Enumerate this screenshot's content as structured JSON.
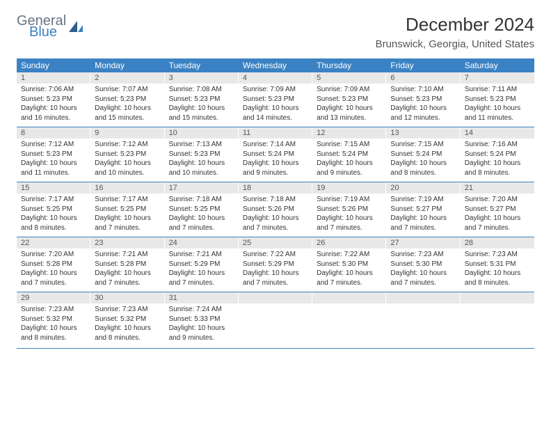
{
  "logo": {
    "text1": "General",
    "text2": "Blue"
  },
  "title": "December 2024",
  "location": "Brunswick, Georgia, United States",
  "weekdays": [
    "Sunday",
    "Monday",
    "Tuesday",
    "Wednesday",
    "Thursday",
    "Friday",
    "Saturday"
  ],
  "colors": {
    "header_bg": "#3b82c4",
    "day_bar_bg": "#e8e8e8",
    "text": "#333333"
  },
  "days": [
    {
      "n": "1",
      "sunrise": "7:06 AM",
      "sunset": "5:23 PM",
      "daylight": "10 hours and 16 minutes."
    },
    {
      "n": "2",
      "sunrise": "7:07 AM",
      "sunset": "5:23 PM",
      "daylight": "10 hours and 15 minutes."
    },
    {
      "n": "3",
      "sunrise": "7:08 AM",
      "sunset": "5:23 PM",
      "daylight": "10 hours and 15 minutes."
    },
    {
      "n": "4",
      "sunrise": "7:09 AM",
      "sunset": "5:23 PM",
      "daylight": "10 hours and 14 minutes."
    },
    {
      "n": "5",
      "sunrise": "7:09 AM",
      "sunset": "5:23 PM",
      "daylight": "10 hours and 13 minutes."
    },
    {
      "n": "6",
      "sunrise": "7:10 AM",
      "sunset": "5:23 PM",
      "daylight": "10 hours and 12 minutes."
    },
    {
      "n": "7",
      "sunrise": "7:11 AM",
      "sunset": "5:23 PM",
      "daylight": "10 hours and 11 minutes."
    },
    {
      "n": "8",
      "sunrise": "7:12 AM",
      "sunset": "5:23 PM",
      "daylight": "10 hours and 11 minutes."
    },
    {
      "n": "9",
      "sunrise": "7:12 AM",
      "sunset": "5:23 PM",
      "daylight": "10 hours and 10 minutes."
    },
    {
      "n": "10",
      "sunrise": "7:13 AM",
      "sunset": "5:23 PM",
      "daylight": "10 hours and 10 minutes."
    },
    {
      "n": "11",
      "sunrise": "7:14 AM",
      "sunset": "5:24 PM",
      "daylight": "10 hours and 9 minutes."
    },
    {
      "n": "12",
      "sunrise": "7:15 AM",
      "sunset": "5:24 PM",
      "daylight": "10 hours and 9 minutes."
    },
    {
      "n": "13",
      "sunrise": "7:15 AM",
      "sunset": "5:24 PM",
      "daylight": "10 hours and 8 minutes."
    },
    {
      "n": "14",
      "sunrise": "7:16 AM",
      "sunset": "5:24 PM",
      "daylight": "10 hours and 8 minutes."
    },
    {
      "n": "15",
      "sunrise": "7:17 AM",
      "sunset": "5:25 PM",
      "daylight": "10 hours and 8 minutes."
    },
    {
      "n": "16",
      "sunrise": "7:17 AM",
      "sunset": "5:25 PM",
      "daylight": "10 hours and 7 minutes."
    },
    {
      "n": "17",
      "sunrise": "7:18 AM",
      "sunset": "5:25 PM",
      "daylight": "10 hours and 7 minutes."
    },
    {
      "n": "18",
      "sunrise": "7:18 AM",
      "sunset": "5:26 PM",
      "daylight": "10 hours and 7 minutes."
    },
    {
      "n": "19",
      "sunrise": "7:19 AM",
      "sunset": "5:26 PM",
      "daylight": "10 hours and 7 minutes."
    },
    {
      "n": "20",
      "sunrise": "7:19 AM",
      "sunset": "5:27 PM",
      "daylight": "10 hours and 7 minutes."
    },
    {
      "n": "21",
      "sunrise": "7:20 AM",
      "sunset": "5:27 PM",
      "daylight": "10 hours and 7 minutes."
    },
    {
      "n": "22",
      "sunrise": "7:20 AM",
      "sunset": "5:28 PM",
      "daylight": "10 hours and 7 minutes."
    },
    {
      "n": "23",
      "sunrise": "7:21 AM",
      "sunset": "5:28 PM",
      "daylight": "10 hours and 7 minutes."
    },
    {
      "n": "24",
      "sunrise": "7:21 AM",
      "sunset": "5:29 PM",
      "daylight": "10 hours and 7 minutes."
    },
    {
      "n": "25",
      "sunrise": "7:22 AM",
      "sunset": "5:29 PM",
      "daylight": "10 hours and 7 minutes."
    },
    {
      "n": "26",
      "sunrise": "7:22 AM",
      "sunset": "5:30 PM",
      "daylight": "10 hours and 7 minutes."
    },
    {
      "n": "27",
      "sunrise": "7:23 AM",
      "sunset": "5:30 PM",
      "daylight": "10 hours and 7 minutes."
    },
    {
      "n": "28",
      "sunrise": "7:23 AM",
      "sunset": "5:31 PM",
      "daylight": "10 hours and 8 minutes."
    },
    {
      "n": "29",
      "sunrise": "7:23 AM",
      "sunset": "5:32 PM",
      "daylight": "10 hours and 8 minutes."
    },
    {
      "n": "30",
      "sunrise": "7:23 AM",
      "sunset": "5:32 PM",
      "daylight": "10 hours and 8 minutes."
    },
    {
      "n": "31",
      "sunrise": "7:24 AM",
      "sunset": "5:33 PM",
      "daylight": "10 hours and 9 minutes."
    }
  ],
  "labels": {
    "sunrise": "Sunrise:",
    "sunset": "Sunset:",
    "daylight": "Daylight:"
  },
  "layout": {
    "start_weekday": 0,
    "total_cells": 35
  }
}
